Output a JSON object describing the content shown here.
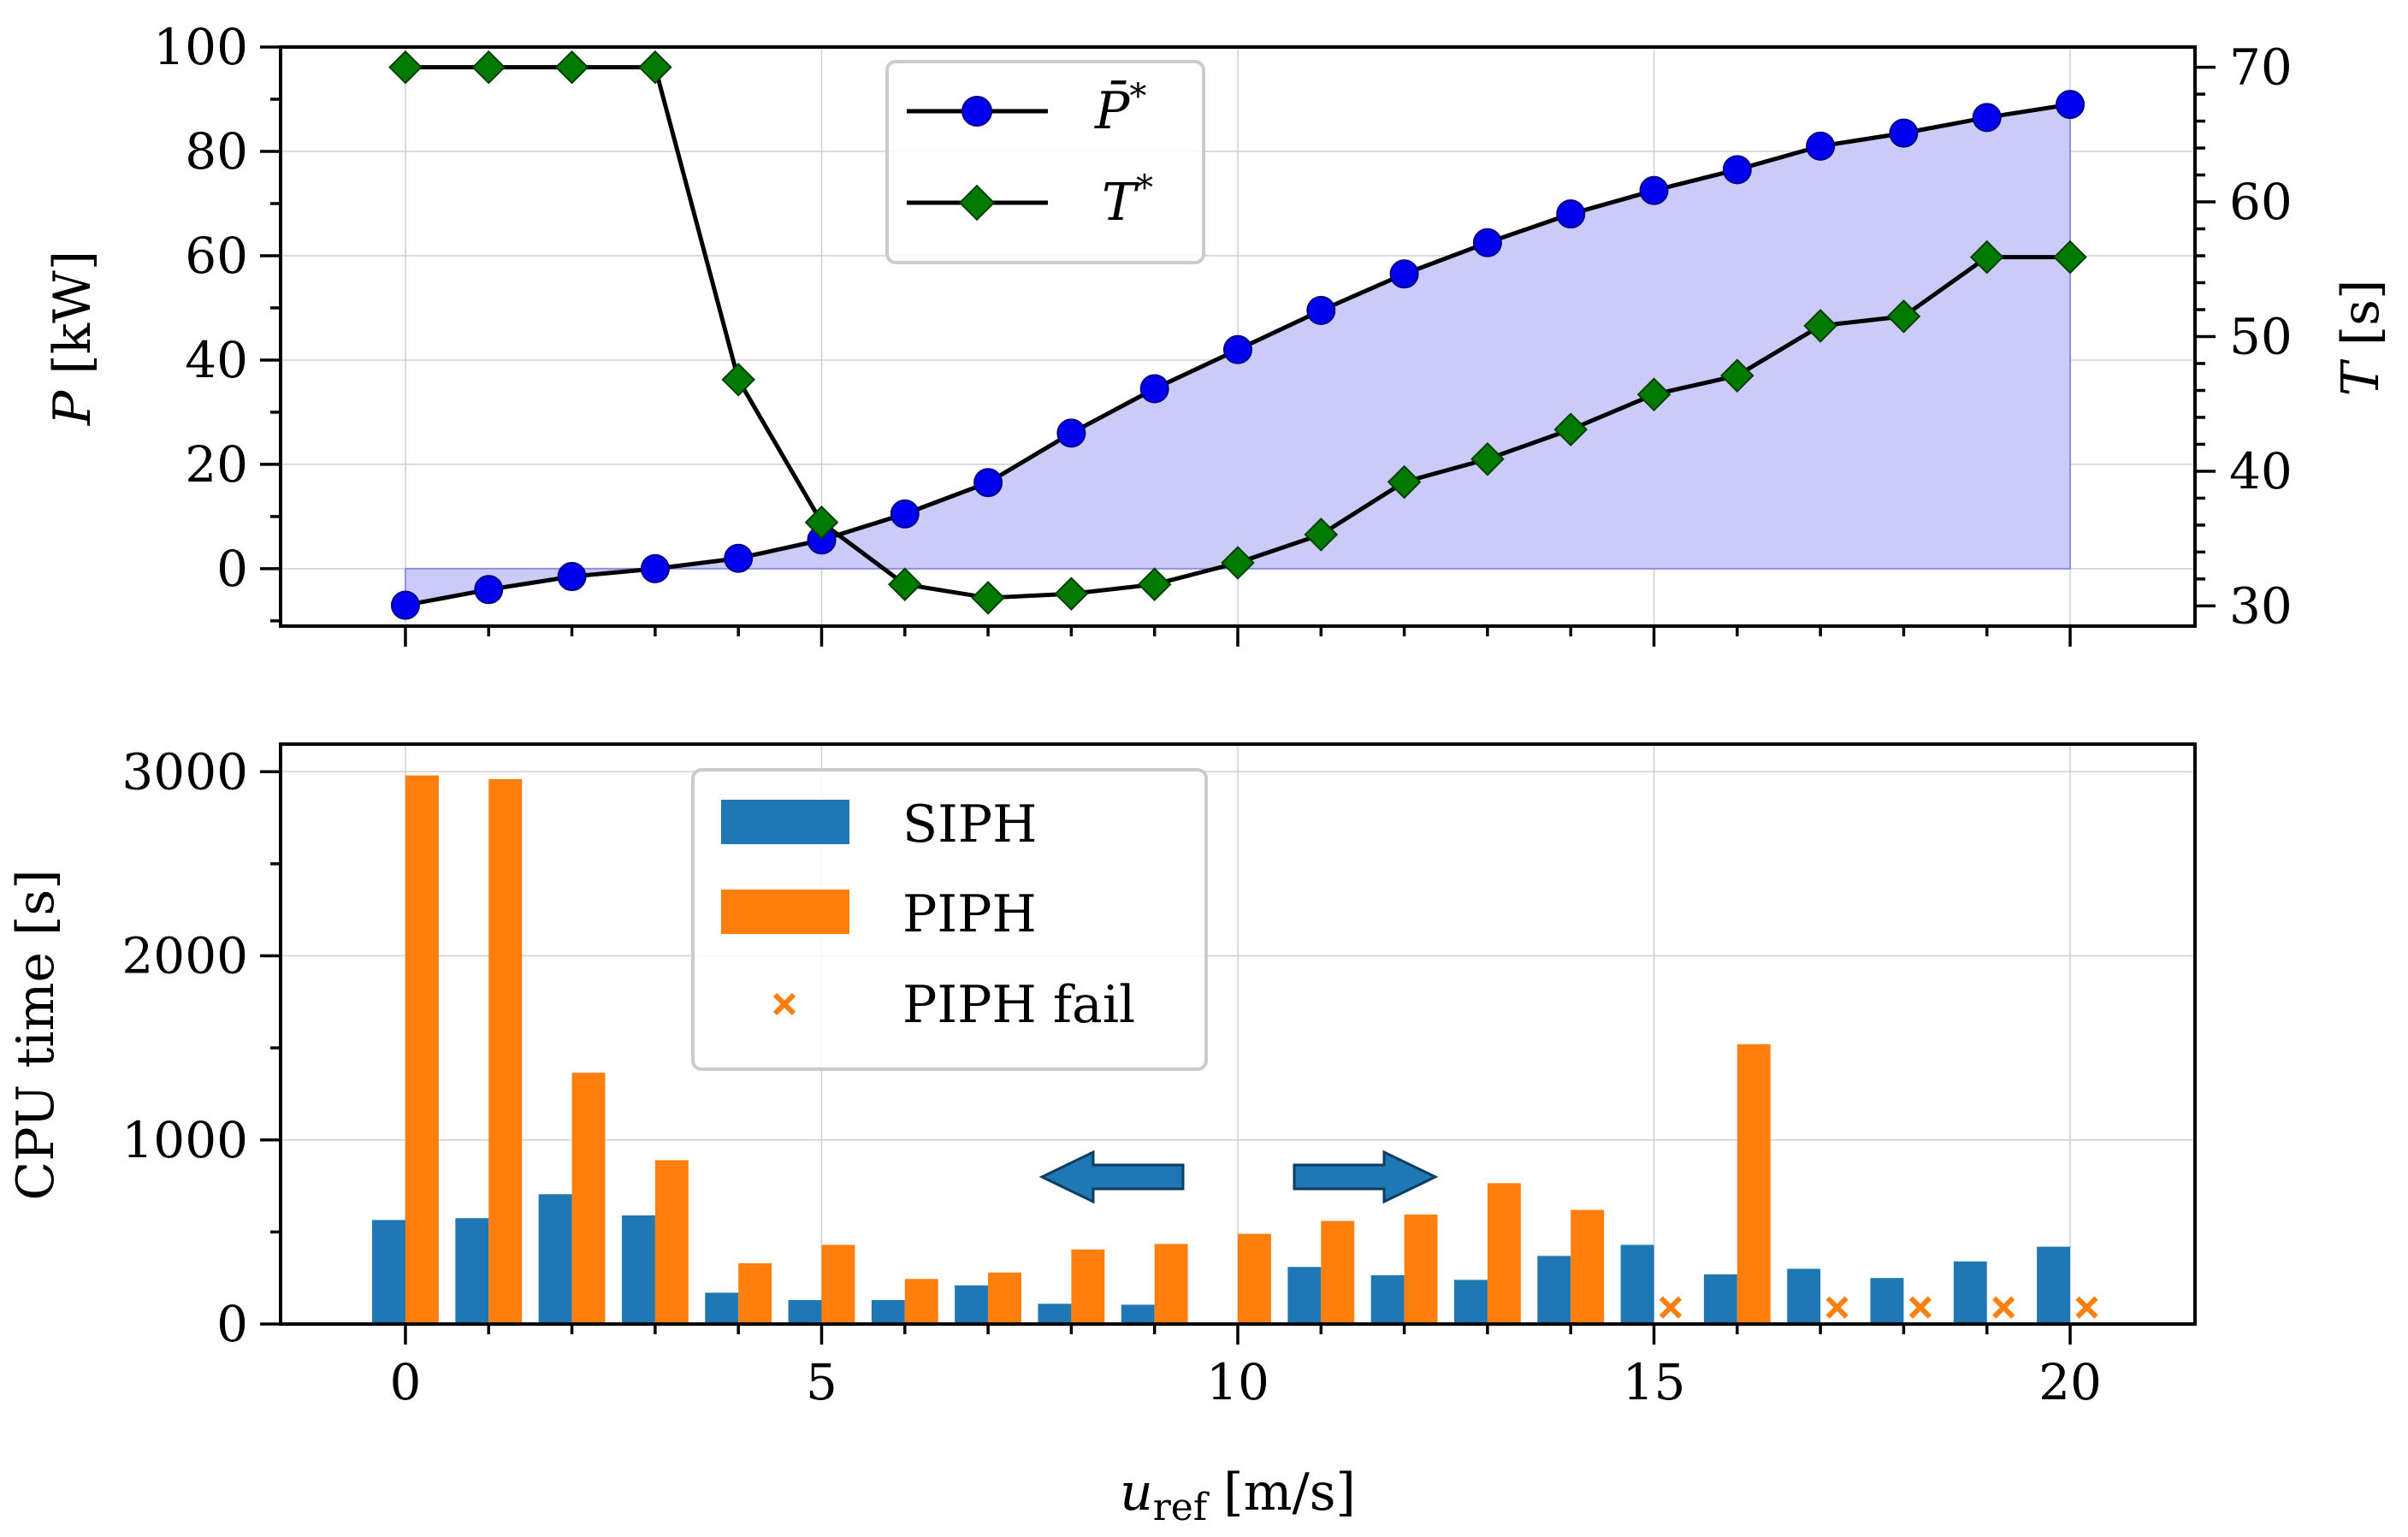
{
  "chart_data": [
    {
      "type": "line",
      "panel": "top",
      "xlabel_main": "u",
      "xlabel_sub": "ref",
      "xlabel_unit": " [m/s]",
      "ylabel_italic": "P",
      "ylabel_unit": " [kW]",
      "y2label_italic": "T",
      "y2label_unit": " [s]",
      "xlim": [
        -1.5,
        21.5
      ],
      "ylim": [
        -11,
        100
      ],
      "y2lim": [
        28.5,
        71.5
      ],
      "xticks": [
        0,
        5,
        10,
        15,
        20
      ],
      "xtick_labels": [
        "0",
        "5",
        "10",
        "15",
        "20"
      ],
      "yticks": [
        0,
        20,
        40,
        60,
        80,
        100
      ],
      "ytick_labels": [
        "0",
        "20",
        "40",
        "60",
        "80",
        "100"
      ],
      "y2ticks": [
        30,
        40,
        50,
        60,
        70
      ],
      "y2tick_labels": [
        "30",
        "40",
        "50",
        "60",
        "70"
      ],
      "grid": true,
      "legend_position": "top-center",
      "shaded_area": {
        "series": "P_bar_star",
        "from_x": 0,
        "to_x": 20,
        "color": "#c8c8f8"
      },
      "x": [
        0,
        1,
        2,
        3,
        4,
        5,
        6,
        7,
        8,
        9,
        10,
        11,
        12,
        13,
        14,
        15,
        16,
        17,
        18,
        19,
        20
      ],
      "series": [
        {
          "name": "P_bar_star",
          "legend_base": "P̄",
          "legend_sup": "*",
          "axis": "left",
          "color": "#0000ee",
          "marker": "circle",
          "values": [
            -7,
            -4,
            -1.5,
            0,
            2,
            5.5,
            10.5,
            16.5,
            26,
            34.5,
            42,
            49.5,
            56.5,
            62.5,
            68,
            72.5,
            76.5,
            81,
            83.5,
            86.5,
            89
          ]
        },
        {
          "name": "T_star",
          "legend_base": "T",
          "legend_sup": "*",
          "axis": "right",
          "color": "#007a00",
          "marker": "diamond",
          "values": [
            70,
            70,
            70,
            70,
            46.8,
            36.2,
            31.6,
            30.6,
            30.9,
            31.6,
            33.2,
            35.3,
            39.2,
            40.9,
            43.1,
            45.7,
            47.1,
            50.8,
            51.5,
            55.9,
            55.9
          ]
        }
      ]
    },
    {
      "type": "bar",
      "panel": "bottom",
      "xlabel_main": "u",
      "xlabel_sub": "ref",
      "xlabel_unit": " [m/s]",
      "ylabel": "CPU time [s]",
      "xlim": [
        -1.5,
        21.5
      ],
      "ylim": [
        0,
        3150
      ],
      "xticks": [
        0,
        5,
        10,
        15,
        20
      ],
      "xtick_labels": [
        "0",
        "5",
        "10",
        "15",
        "20"
      ],
      "yticks": [
        0,
        1000,
        2000,
        3000
      ],
      "ytick_labels": [
        "0",
        "1000",
        "2000",
        "3000"
      ],
      "grid": true,
      "legend_position": "upper-left",
      "categories": [
        0,
        1,
        2,
        3,
        4,
        5,
        6,
        7,
        8,
        9,
        10,
        11,
        12,
        13,
        14,
        15,
        16,
        17,
        18,
        19,
        20
      ],
      "series": [
        {
          "name": "SIPH",
          "color": "#1f77b4",
          "values": [
            565,
            575,
            705,
            590,
            170,
            130,
            130,
            210,
            110,
            105,
            0,
            310,
            265,
            240,
            370,
            430,
            270,
            300,
            250,
            340,
            420
          ]
        },
        {
          "name": "PIPH",
          "color": "#ff7f0e",
          "values": [
            2980,
            2960,
            1365,
            890,
            330,
            430,
            245,
            280,
            405,
            435,
            490,
            560,
            595,
            765,
            620,
            null,
            1520,
            null,
            null,
            null,
            null
          ]
        }
      ],
      "fail_markers": {
        "name": "PIPH fail",
        "color": "#ff7f0e",
        "marker": "x",
        "x": [
          15,
          17,
          18,
          19,
          20
        ],
        "y": [
          90,
          90,
          90,
          90,
          90
        ]
      },
      "annotations": [
        {
          "type": "arrow",
          "direction": "left",
          "color": "#1f77b4"
        },
        {
          "type": "arrow",
          "direction": "right",
          "color": "#1f77b4"
        }
      ]
    }
  ]
}
